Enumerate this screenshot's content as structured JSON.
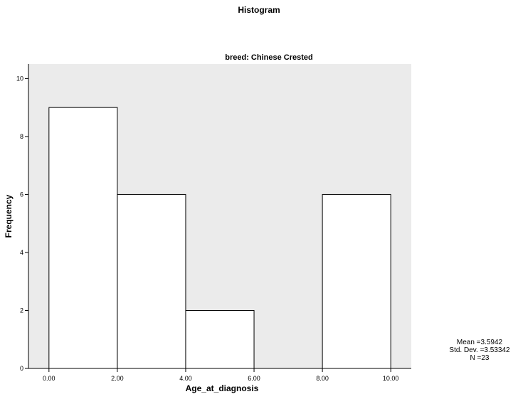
{
  "chart_data": {
    "type": "bar",
    "title": "Histogram",
    "subtitle": "breed: Chinese Crested",
    "xlabel": "Age_at_diagnosis",
    "ylabel": "Frequency",
    "bins": [
      {
        "start": 0,
        "end": 2,
        "count": 9
      },
      {
        "start": 2,
        "end": 4,
        "count": 6
      },
      {
        "start": 4,
        "end": 6,
        "count": 2
      },
      {
        "start": 6,
        "end": 8,
        "count": 0
      },
      {
        "start": 8,
        "end": 10,
        "count": 6
      }
    ],
    "xlim": [
      -0.6,
      10.6
    ],
    "ylim": [
      0,
      10.5
    ],
    "x_ticks": [
      "0.00",
      "2.00",
      "4.00",
      "6.00",
      "8.00",
      "10.00"
    ],
    "y_ticks": [
      "0",
      "2",
      "4",
      "6",
      "8",
      "10"
    ],
    "plot_background": "#ebebeb",
    "bar_fill": "#ffffff",
    "bar_stroke": "#000000",
    "grid": false,
    "stats": {
      "mean": "Mean =3.5942",
      "std_dev": "Std. Dev. =3.53342",
      "n": "N =23"
    }
  }
}
